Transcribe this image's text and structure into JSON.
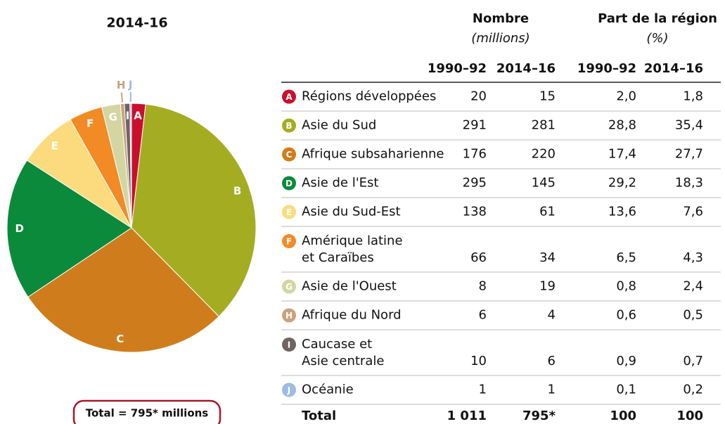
{
  "chart_data": {
    "type": "pie",
    "title": "2014-16",
    "categories": [
      "A",
      "B",
      "C",
      "D",
      "E",
      "F",
      "G",
      "H",
      "I",
      "J"
    ],
    "values": [
      1.8,
      35.4,
      27.7,
      18.3,
      7.6,
      4.3,
      2.4,
      0.5,
      0.7,
      0.2
    ],
    "colors": [
      "#c8102e",
      "#a4ad22",
      "#cf7d1c",
      "#0b8a3b",
      "#fcdb7e",
      "#f28a26",
      "#d4d6a2",
      "#c9a27d",
      "#6e6463",
      "#9cbbe0"
    ],
    "total_label": "Total = 795* millions"
  },
  "table": {
    "group1": [
      "Nombre",
      "(millions)"
    ],
    "group2": [
      "Part de la région",
      "(%)"
    ],
    "columns": [
      "1990–92",
      "2014–16",
      "1990–92",
      "2014–16"
    ],
    "rows": [
      {
        "letter": "A",
        "name": [
          "Régions développées"
        ],
        "cells": [
          "20",
          "15",
          "2,0",
          "1,8"
        ]
      },
      {
        "letter": "B",
        "name": [
          "Asie du Sud"
        ],
        "cells": [
          "291",
          "281",
          "28,8",
          "35,4"
        ]
      },
      {
        "letter": "C",
        "name": [
          "Afrique subsaharienne"
        ],
        "cells": [
          "176",
          "220",
          "17,4",
          "27,7"
        ]
      },
      {
        "letter": "D",
        "name": [
          "Asie de l'Est"
        ],
        "cells": [
          "295",
          "145",
          "29,2",
          "18,3"
        ]
      },
      {
        "letter": "E",
        "name": [
          "Asie du Sud-Est"
        ],
        "cells": [
          "138",
          "61",
          "13,6",
          "7,6"
        ]
      },
      {
        "letter": "F",
        "name": [
          "Amérique latine",
          "et Caraïbes"
        ],
        "cells": [
          "66",
          "34",
          "6,5",
          "4,3"
        ]
      },
      {
        "letter": "G",
        "name": [
          "Asie de l'Ouest"
        ],
        "cells": [
          "8",
          "19",
          "0,8",
          "2,4"
        ]
      },
      {
        "letter": "H",
        "name": [
          "Afrique du Nord"
        ],
        "cells": [
          "6",
          "4",
          "0,6",
          "0,5"
        ]
      },
      {
        "letter": "I",
        "name": [
          "Caucase et",
          "Asie centrale"
        ],
        "cells": [
          "10",
          "6",
          "0,9",
          "0,7"
        ]
      },
      {
        "letter": "J",
        "name": [
          "Océanie"
        ],
        "cells": [
          "1",
          "1",
          "0,1",
          "0,2"
        ]
      }
    ],
    "total": {
      "name": "Total",
      "cells": [
        "1 011",
        "795*",
        "100",
        "100"
      ]
    }
  }
}
